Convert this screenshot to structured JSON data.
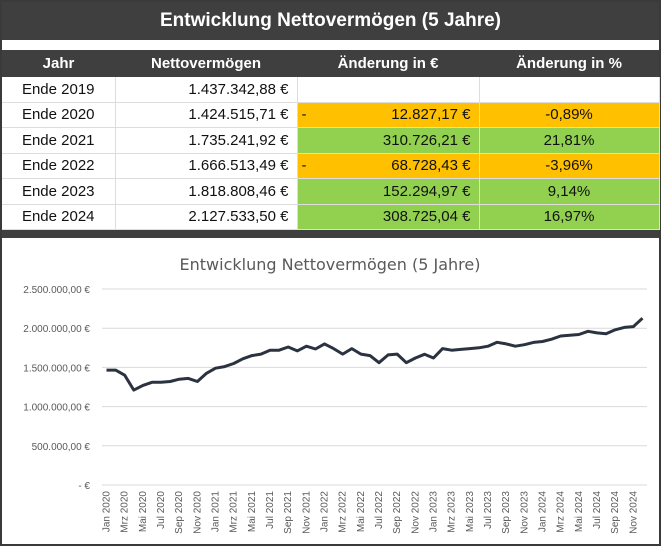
{
  "title": "Entwicklung Nettovermögen (5 Jahre)",
  "table": {
    "headers": [
      "Jahr",
      "Nettovermögen",
      "Änderung in €",
      "Änderung in %"
    ],
    "rows": [
      {
        "jahr": "Ende 2019",
        "wert": "1.437.342,88 €",
        "aend_eur": "",
        "aend_pct": "",
        "sign": "",
        "status": "none"
      },
      {
        "jahr": "Ende 2020",
        "wert": "1.424.515,71 €",
        "aend_eur": "12.827,17 €",
        "aend_pct": "-0,89%",
        "sign": "-",
        "status": "neg"
      },
      {
        "jahr": "Ende 2021",
        "wert": "1.735.241,92 €",
        "aend_eur": "310.726,21 €",
        "aend_pct": "21,81%",
        "sign": "",
        "status": "pos"
      },
      {
        "jahr": "Ende 2022",
        "wert": "1.666.513,49 €",
        "aend_eur": "68.728,43 €",
        "aend_pct": "-3,96%",
        "sign": "-",
        "status": "neg"
      },
      {
        "jahr": "Ende 2023",
        "wert": "1.818.808,46 €",
        "aend_eur": "152.294,97 €",
        "aend_pct": "9,14%",
        "sign": "",
        "status": "pos"
      },
      {
        "jahr": "Ende 2024",
        "wert": "2.127.533,50 €",
        "aend_eur": "308.725,04 €",
        "aend_pct": "16,97%",
        "sign": "",
        "status": "pos"
      }
    ]
  },
  "colors": {
    "negative": "#ffc000",
    "positive": "#92d050",
    "header": "#3f3f3f",
    "line": "#2b3240"
  },
  "chart_data": {
    "type": "line",
    "title": "Entwicklung Nettovermögen (5 Jahre)",
    "xlabel": "",
    "ylabel": "",
    "ylim": [
      0,
      2500000
    ],
    "yticks": [
      0,
      500000,
      1000000,
      1500000,
      2000000,
      2500000
    ],
    "ytick_labels": [
      "-   €",
      "500.000,00 €",
      "1.000.000,00 €",
      "1.500.000,00 €",
      "2.000.000,00 €",
      "2.500.000,00 €"
    ],
    "grid": true,
    "x_tick_labels": [
      "Jan 2020",
      "Mrz 2020",
      "Mai 2020",
      "Jul 2020",
      "Sep 2020",
      "Nov 2020",
      "Jan 2021",
      "Mrz 2021",
      "Mai 2021",
      "Jul 2021",
      "Sep 2021",
      "Nov 2021",
      "Jan 2022",
      "Mrz 2022",
      "Mai 2022",
      "Jul 2022",
      "Sep 2022",
      "Nov 2022",
      "Jan 2023",
      "Mrz 2023",
      "Mai 2023",
      "Jul 2023",
      "Sep 2023",
      "Nov 2023",
      "Jan 2024",
      "Mrz 2024",
      "Mai 2024",
      "Jul 2024",
      "Sep 2024",
      "Nov 2024"
    ],
    "series": [
      {
        "name": "Nettovermögen",
        "values": [
          1465000,
          1465000,
          1400000,
          1210000,
          1270000,
          1310000,
          1310000,
          1320000,
          1350000,
          1360000,
          1320000,
          1424516,
          1490000,
          1510000,
          1550000,
          1610000,
          1650000,
          1670000,
          1720000,
          1720000,
          1760000,
          1710000,
          1770000,
          1735242,
          1800000,
          1740000,
          1670000,
          1740000,
          1670000,
          1650000,
          1560000,
          1660000,
          1670000,
          1560000,
          1620000,
          1666513,
          1620000,
          1740000,
          1720000,
          1730000,
          1740000,
          1750000,
          1770000,
          1820000,
          1800000,
          1770000,
          1790000,
          1818808,
          1830000,
          1860000,
          1900000,
          1910000,
          1920000,
          1960000,
          1940000,
          1930000,
          1980000,
          2010000,
          2020000,
          2127534
        ]
      }
    ]
  }
}
